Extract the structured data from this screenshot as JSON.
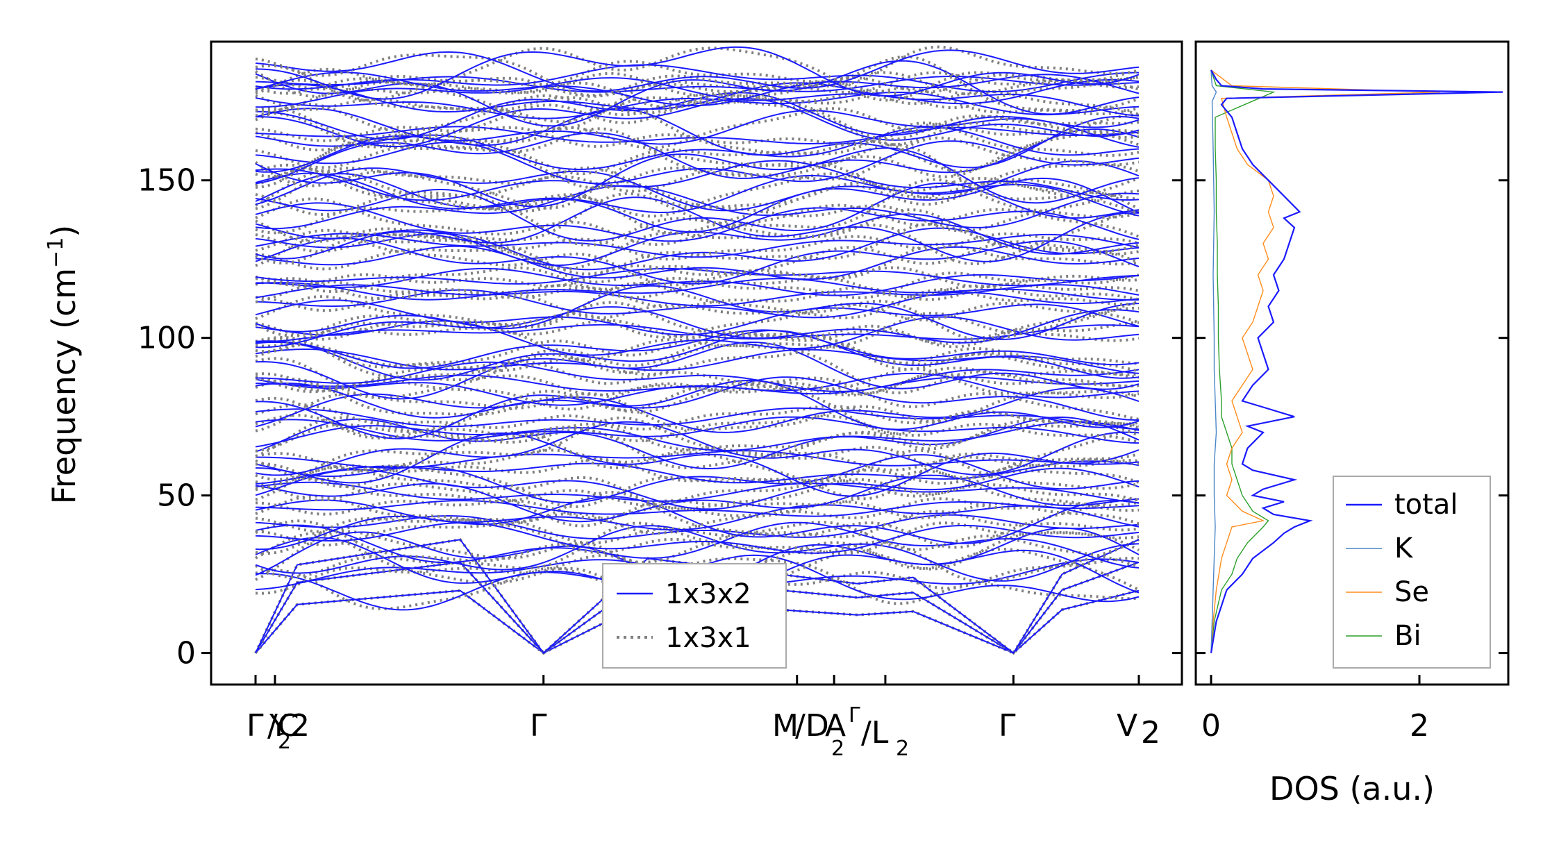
{
  "chart_data": [
    {
      "type": "line",
      "title": "",
      "ylabel": "Frequency (cm",
      "ylabel_sup": "−1",
      "ylabel_close": ")",
      "xlabel": "",
      "ylim": [
        -10,
        194
      ],
      "yticks": [
        0,
        50,
        100,
        150
      ],
      "kpath": [
        {
          "label": "Γ",
          "pos": 0.0
        },
        {
          "label": "C",
          "pos": 0.0
        },
        {
          "label": "Y",
          "pos": 0.022
        },
        {
          "label": "2",
          "pos": 0.022
        },
        {
          "label": "Γ",
          "pos": 0.326
        },
        {
          "label": "M",
          "pos": 0.613
        },
        {
          "label": "A",
          "pos": 0.655
        },
        {
          "label": "Γ",
          "pos": 0.713
        },
        {
          "label": "Γ",
          "pos": 0.858
        },
        {
          "label": "V",
          "pos": 1.0
        }
      ],
      "kpath_text": {
        "left": "Γ",
        "left_slash": "/C",
        "left_sub": "2",
        "y": "Y",
        "y_sub": "2",
        "gamma_mid": "Γ",
        "m": "M",
        "m_slash": "/D",
        "m_sub": "2",
        "a": "A",
        "gamma_small": "Γ",
        "gamma_slash": "/L",
        "gamma_sub": "2",
        "gamma_right": "Γ",
        "v": "V",
        "v_sub": "2"
      },
      "series": [
        {
          "name": "1x3x2",
          "color": "#1a1aff",
          "style": "solid"
        },
        {
          "name": "1x3x1",
          "color": "#808080",
          "style": "dotted"
        }
      ]
    },
    {
      "type": "line",
      "xlabel": "DOS (a.u.)",
      "xlim": [
        0,
        2.8
      ],
      "xticks": [
        0,
        2
      ],
      "ylim": [
        -10,
        194
      ],
      "series": [
        {
          "name": "total",
          "color": "#1a1aff",
          "freq": [
            0,
            10,
            20,
            25,
            30,
            35,
            38,
            40,
            42,
            44,
            46,
            48,
            50,
            52,
            55,
            58,
            60,
            65,
            70,
            72,
            75,
            78,
            80,
            85,
            90,
            95,
            100,
            105,
            110,
            115,
            120,
            125,
            130,
            135,
            138,
            140,
            145,
            150,
            155,
            160,
            165,
            170,
            174,
            176,
            178,
            179,
            180,
            182,
            185
          ],
          "dos": [
            0,
            0.05,
            0.15,
            0.3,
            0.4,
            0.6,
            0.7,
            0.8,
            0.95,
            0.6,
            0.5,
            0.7,
            0.4,
            0.5,
            0.8,
            0.4,
            0.3,
            0.35,
            0.5,
            0.35,
            0.8,
            0.5,
            0.3,
            0.4,
            0.55,
            0.5,
            0.45,
            0.6,
            0.55,
            0.65,
            0.6,
            0.7,
            0.75,
            0.8,
            0.7,
            0.85,
            0.7,
            0.55,
            0.4,
            0.3,
            0.25,
            0.2,
            0.1,
            0.15,
            2.8,
            0.5,
            0.1,
            0.05,
            0.0
          ]
        },
        {
          "name": "K",
          "color": "#4a86c8",
          "freq": [
            0,
            10,
            20,
            30,
            40,
            50,
            60,
            70,
            80,
            90,
            100,
            120,
            140,
            160,
            175,
            178,
            180,
            185
          ],
          "dos": [
            0,
            0.01,
            0.02,
            0.03,
            0.04,
            0.03,
            0.03,
            0.05,
            0.04,
            0.03,
            0.03,
            0.02,
            0.03,
            0.02,
            0.01,
            0.05,
            0.01,
            0
          ]
        },
        {
          "name": "Se",
          "color": "#ff8c1a",
          "freq": [
            0,
            10,
            20,
            30,
            35,
            40,
            42,
            45,
            50,
            55,
            60,
            65,
            70,
            75,
            80,
            85,
            90,
            95,
            100,
            105,
            110,
            115,
            120,
            125,
            130,
            135,
            140,
            145,
            150,
            155,
            160,
            165,
            170,
            176,
            178,
            180,
            185
          ],
          "dos": [
            0,
            0.02,
            0.05,
            0.1,
            0.15,
            0.2,
            0.5,
            0.3,
            0.15,
            0.2,
            0.15,
            0.2,
            0.3,
            0.25,
            0.2,
            0.3,
            0.4,
            0.35,
            0.3,
            0.4,
            0.45,
            0.5,
            0.45,
            0.55,
            0.5,
            0.6,
            0.55,
            0.6,
            0.55,
            0.35,
            0.25,
            0.2,
            0.15,
            0.1,
            2.2,
            0.2,
            0
          ]
        },
        {
          "name": "Bi",
          "color": "#2ca02c",
          "freq": [
            0,
            10,
            20,
            25,
            30,
            35,
            40,
            42,
            45,
            50,
            55,
            60,
            65,
            70,
            75,
            80,
            90,
            100,
            110,
            120,
            130,
            140,
            150,
            160,
            170,
            178,
            180,
            185
          ],
          "dos": [
            0,
            0.03,
            0.1,
            0.2,
            0.25,
            0.35,
            0.5,
            0.55,
            0.4,
            0.3,
            0.25,
            0.2,
            0.2,
            0.15,
            0.1,
            0.1,
            0.08,
            0.07,
            0.07,
            0.06,
            0.06,
            0.05,
            0.05,
            0.04,
            0.04,
            0.6,
            0.05,
            0
          ]
        }
      ]
    }
  ],
  "legend_left": [
    "1x3x2",
    "1x3x1"
  ],
  "legend_right": [
    "total",
    "K",
    "Se",
    "Bi"
  ]
}
